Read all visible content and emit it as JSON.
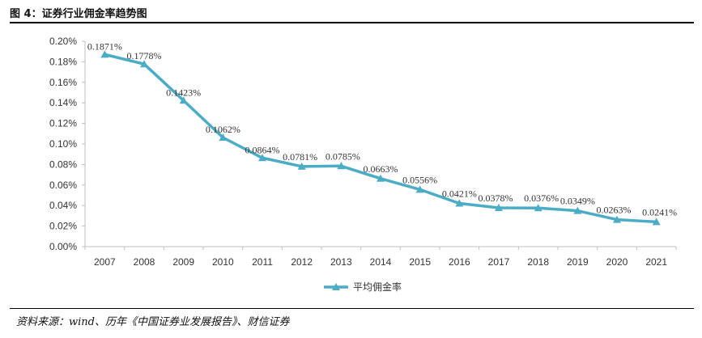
{
  "header": {
    "title": "图 4：证券行业佣金率趋势图"
  },
  "footer": {
    "source": "资料来源：wind、历年《中国证券业发展报告》、财信证券"
  },
  "colors": {
    "series": "#4BACC6",
    "axis": "#bfbfbf",
    "text": "#333333"
  },
  "chart_data": {
    "type": "line",
    "title": "",
    "xlabel": "",
    "ylabel": "",
    "categories": [
      "2007",
      "2008",
      "2009",
      "2010",
      "2011",
      "2012",
      "2013",
      "2014",
      "2015",
      "2016",
      "2017",
      "2018",
      "2019",
      "2020",
      "2021"
    ],
    "series": [
      {
        "name": "平均佣金率",
        "values": [
          0.1871,
          0.1778,
          0.1423,
          0.1062,
          0.0864,
          0.0781,
          0.0785,
          0.0663,
          0.0556,
          0.0421,
          0.0378,
          0.0376,
          0.0349,
          0.0263,
          0.0241
        ],
        "labels": [
          "0.1871%",
          "0.1778%",
          "0.1423%",
          "0.1062%",
          "0.0864%",
          "0.0781%",
          "0.0785%",
          "0.0663%",
          "0.0556%",
          "0.0421%",
          "0.0378%",
          "0.0376%",
          "0.0349%",
          "0.0263%",
          "0.0241%"
        ]
      }
    ],
    "ylim": [
      0,
      0.2
    ],
    "yticks": [
      "0.00%",
      "0.02%",
      "0.04%",
      "0.06%",
      "0.08%",
      "0.10%",
      "0.12%",
      "0.14%",
      "0.16%",
      "0.18%",
      "0.20%"
    ],
    "legend": "bottom-center"
  }
}
